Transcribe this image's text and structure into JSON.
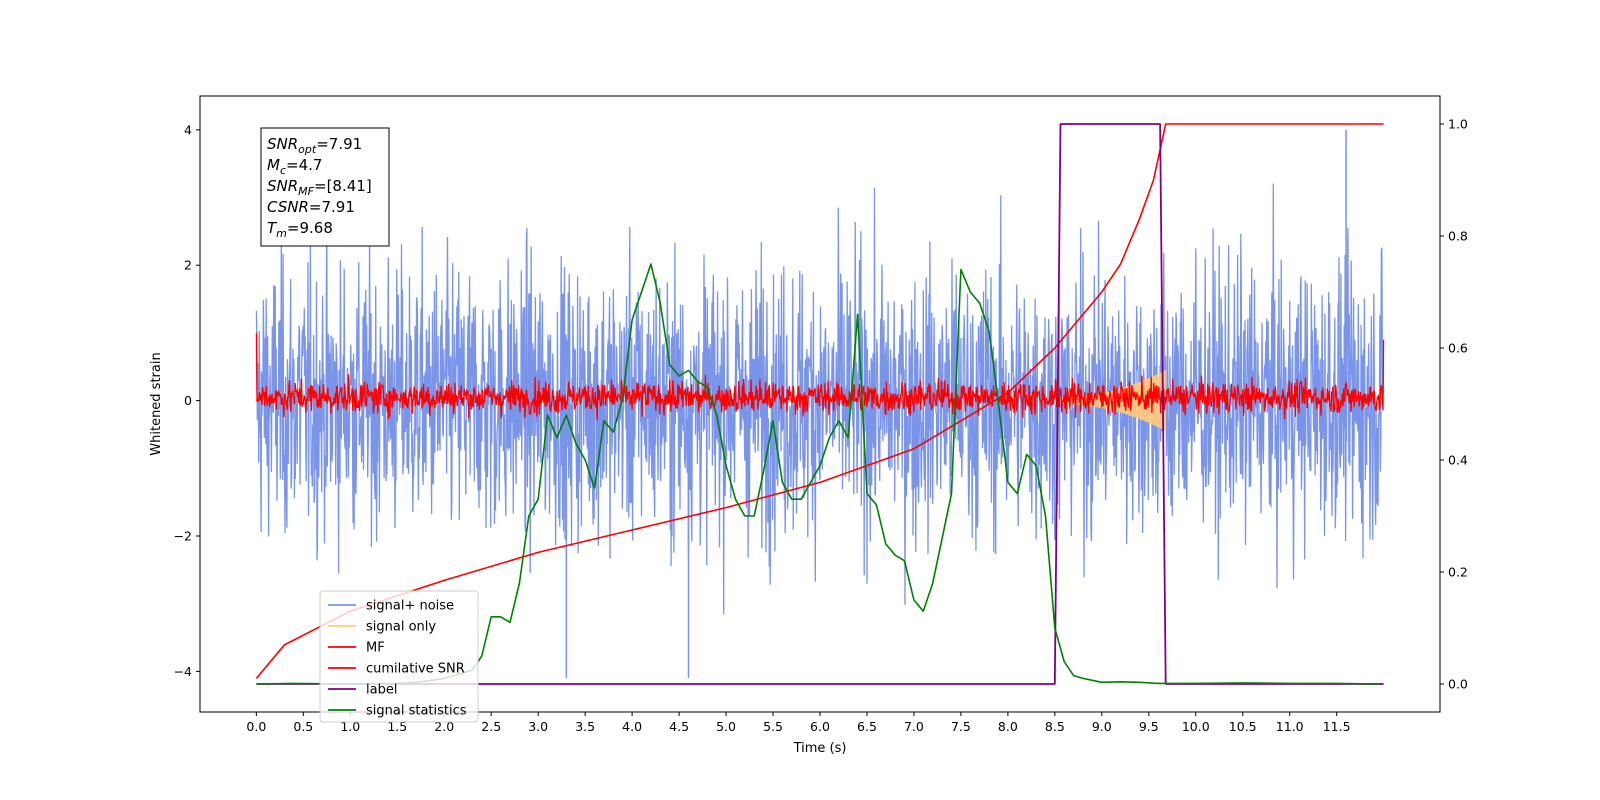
{
  "chart_data": {
    "type": "line",
    "title": "",
    "xlabel": "Time (s)",
    "ylabel": "Whitened strain",
    "xlim": [
      -0.6,
      12.6
    ],
    "ylim": [
      -4.6,
      4.5
    ],
    "y2lim": [
      -0.05,
      1.05
    ],
    "xticks": [
      "0.0",
      "0.5",
      "1.0",
      "1.5",
      "2.0",
      "2.5",
      "3.0",
      "3.5",
      "4.0",
      "4.5",
      "5.0",
      "5.5",
      "6.0",
      "6.5",
      "7.0",
      "7.5",
      "8.0",
      "8.5",
      "9.0",
      "9.5",
      "10.0",
      "10.5",
      "11.0",
      "11.5"
    ],
    "yticks": [
      "−4",
      "−2",
      "0",
      "2",
      "4"
    ],
    "y2ticks": [
      "0.0",
      "0.2",
      "0.4",
      "0.6",
      "0.8",
      "1.0"
    ],
    "annotation": {
      "lines": [
        {
          "sym": "SNR",
          "sub": "opt",
          "val": "=7.91"
        },
        {
          "sym": "M",
          "sub": "c",
          "val": "=4.7"
        },
        {
          "sym": "SNR",
          "sub": "MF",
          "val": "=[8.41]"
        },
        {
          "sym": "CSNR",
          "sub": "",
          "val": "=7.91"
        },
        {
          "sym": "T",
          "sub": "m",
          "val": "=9.68"
        }
      ]
    },
    "legend": {
      "placement": "lower-left",
      "entries": [
        {
          "label": "signal+ noise",
          "color": "#7994e8"
        },
        {
          "label": "signal only",
          "color": "#ffc97a"
        },
        {
          "label": "MF",
          "color": "#ff0000"
        },
        {
          "label": "cumilative SNR",
          "color": "#ff0000"
        },
        {
          "label": "label",
          "color": "#800080"
        },
        {
          "label": "signal statistics",
          "color": "#008000"
        }
      ]
    },
    "series": [
      {
        "name": "signal+ noise",
        "axis": "left",
        "color": "#7994e8",
        "noise": {
          "x_start": 0.0,
          "x_end": 12.0,
          "std": 1.0,
          "clip": 4.0
        },
        "spikes": [
          {
            "x": 3.3,
            "y": -4.1
          },
          {
            "x": 4.6,
            "y": -4.1
          },
          {
            "x": 11.6,
            "y": 4.0
          }
        ]
      },
      {
        "name": "signal only",
        "axis": "left",
        "color": "#ffc97a",
        "chirp": {
          "x_start": 8.5,
          "x_end": 9.68,
          "amp_start": 0.05,
          "amp_end": 0.45
        }
      },
      {
        "name": "MF",
        "axis": "left",
        "color": "#ff0000",
        "noise": {
          "x_start": 0.0,
          "x_end": 12.0,
          "std": 0.12,
          "offset": 0.05
        },
        "endpoints": [
          {
            "x": 0.0,
            "y": 1.0
          },
          {
            "x": 12.0,
            "y": 0.9
          }
        ]
      },
      {
        "name": "cumilative SNR",
        "axis": "right",
        "x": [
          0.0,
          0.3,
          1.0,
          2.0,
          3.0,
          4.0,
          5.0,
          6.0,
          6.5,
          7.0,
          7.5,
          8.0,
          8.5,
          9.0,
          9.2,
          9.4,
          9.55,
          9.68,
          12.0
        ],
        "y": [
          0.01,
          0.07,
          0.13,
          0.185,
          0.235,
          0.275,
          0.315,
          0.36,
          0.39,
          0.42,
          0.47,
          0.52,
          0.6,
          0.7,
          0.75,
          0.83,
          0.9,
          1.0,
          1.0
        ]
      },
      {
        "name": "label",
        "axis": "right",
        "x": [
          0.0,
          8.5,
          8.56,
          9.62,
          9.68,
          12.0
        ],
        "y": [
          0.0,
          0.0,
          1.0,
          1.0,
          0.0,
          0.0
        ]
      },
      {
        "name": "signal statistics",
        "axis": "right",
        "x": [
          0.0,
          0.4,
          1.0,
          1.5,
          1.8,
          2.0,
          2.1,
          2.2,
          2.3,
          2.4,
          2.5,
          2.6,
          2.7,
          2.8,
          2.9,
          3.0,
          3.1,
          3.2,
          3.3,
          3.4,
          3.5,
          3.6,
          3.7,
          3.8,
          3.9,
          4.0,
          4.1,
          4.2,
          4.3,
          4.4,
          4.5,
          4.6,
          4.7,
          4.8,
          4.9,
          5.0,
          5.1,
          5.2,
          5.3,
          5.4,
          5.5,
          5.6,
          5.7,
          5.8,
          5.9,
          6.0,
          6.1,
          6.2,
          6.3,
          6.4,
          6.5,
          6.6,
          6.7,
          6.8,
          6.9,
          7.0,
          7.1,
          7.2,
          7.3,
          7.4,
          7.5,
          7.6,
          7.7,
          7.8,
          7.9,
          8.0,
          8.1,
          8.2,
          8.3,
          8.4,
          8.5,
          8.6,
          8.7,
          8.8,
          9.0,
          9.2,
          9.4,
          9.6,
          10.0,
          10.5,
          11.0,
          11.5,
          11.95
        ],
        "y": [
          0.0,
          0.001,
          0.0,
          0.001,
          0.005,
          0.01,
          0.015,
          0.02,
          0.025,
          0.05,
          0.12,
          0.12,
          0.11,
          0.18,
          0.3,
          0.33,
          0.48,
          0.44,
          0.48,
          0.43,
          0.4,
          0.35,
          0.47,
          0.45,
          0.51,
          0.65,
          0.7,
          0.75,
          0.68,
          0.57,
          0.55,
          0.56,
          0.54,
          0.53,
          0.48,
          0.39,
          0.33,
          0.3,
          0.3,
          0.38,
          0.47,
          0.36,
          0.33,
          0.33,
          0.36,
          0.39,
          0.44,
          0.47,
          0.44,
          0.66,
          0.34,
          0.32,
          0.25,
          0.23,
          0.22,
          0.15,
          0.13,
          0.18,
          0.26,
          0.34,
          0.74,
          0.7,
          0.68,
          0.63,
          0.5,
          0.36,
          0.34,
          0.41,
          0.39,
          0.3,
          0.1,
          0.04,
          0.015,
          0.01,
          0.003,
          0.004,
          0.003,
          0.001,
          0.001,
          0.002,
          0.001,
          0.001,
          0.0
        ]
      }
    ]
  }
}
